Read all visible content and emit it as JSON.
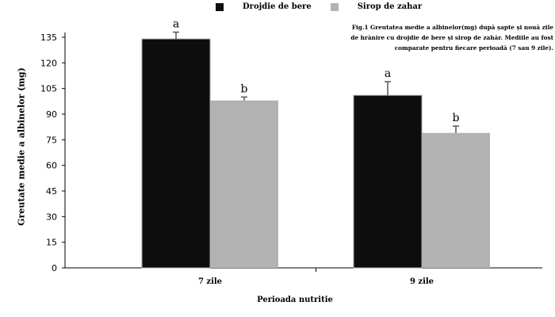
{
  "legend": [
    {
      "name": "Drojdie de bere",
      "color": "#0d0d0d"
    },
    {
      "name": "Sirop de zahar",
      "color": "#b2b2b2"
    }
  ],
  "caption": "Fig.1 Greutatea medie a albinelor(mg) după șapte și nouă zile de hrănire cu drojdie de bere și sirop de zahăr. Mediile au fost comparate pentru fiecare perioadă (7 sau 9 zile).",
  "chart_data": {
    "type": "bar",
    "xlabel": "Perioada nutritie",
    "ylabel": "Greutate medie a albinelor (mg)",
    "categories": [
      "7 zile",
      "9 zile"
    ],
    "ylim": [
      0,
      135
    ],
    "yticks": [
      0,
      15,
      30,
      45,
      60,
      75,
      90,
      105,
      120,
      135
    ],
    "series": [
      {
        "name": "Drojdie de bere",
        "color": "#0d0d0d",
        "values": [
          134,
          101
        ],
        "errors": [
          4,
          8
        ],
        "letters": [
          "a",
          "a"
        ]
      },
      {
        "name": "Sirop de zahar",
        "color": "#b2b2b2",
        "values": [
          98,
          79
        ],
        "errors": [
          2,
          4
        ],
        "letters": [
          "b",
          "b"
        ]
      }
    ]
  }
}
